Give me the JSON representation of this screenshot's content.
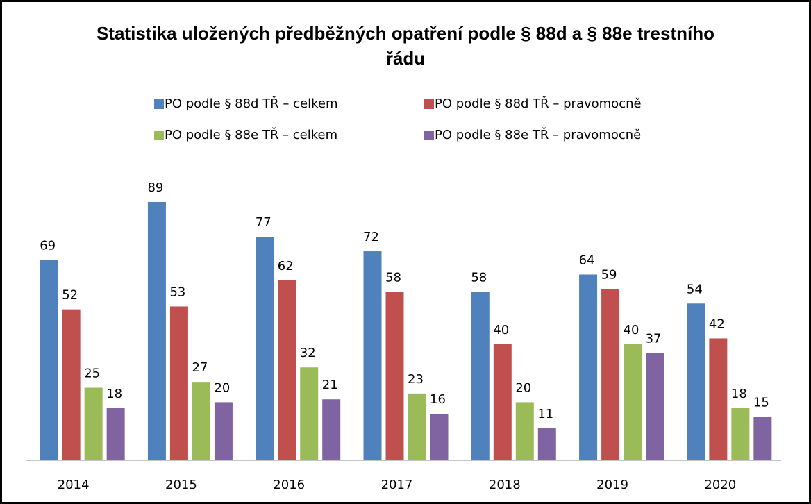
{
  "chart_data": {
    "type": "bar",
    "title": "Statistika uložených předběžných opatření podle § 88d a § 88e trestního řádu",
    "categories": [
      "2014",
      "2015",
      "2016",
      "2017",
      "2018",
      "2019",
      "2020"
    ],
    "series": [
      {
        "name": "PO podle § 88d TŘ – celkem",
        "color": "#4f81bd",
        "values": [
          69,
          89,
          77,
          72,
          58,
          64,
          54
        ]
      },
      {
        "name": "PO podle § 88d TŘ – pravomocně",
        "color": "#c0504d",
        "values": [
          52,
          53,
          62,
          58,
          40,
          59,
          42
        ]
      },
      {
        "name": "PO podle § 88e TŘ – celkem",
        "color": "#9bbb59",
        "values": [
          25,
          27,
          32,
          23,
          20,
          40,
          18
        ]
      },
      {
        "name": "PO podle § 88e TŘ – pravomocně",
        "color": "#8064a2",
        "values": [
          18,
          20,
          21,
          16,
          11,
          37,
          15
        ]
      }
    ],
    "ylim": [
      0,
      100
    ],
    "legend": "top"
  }
}
